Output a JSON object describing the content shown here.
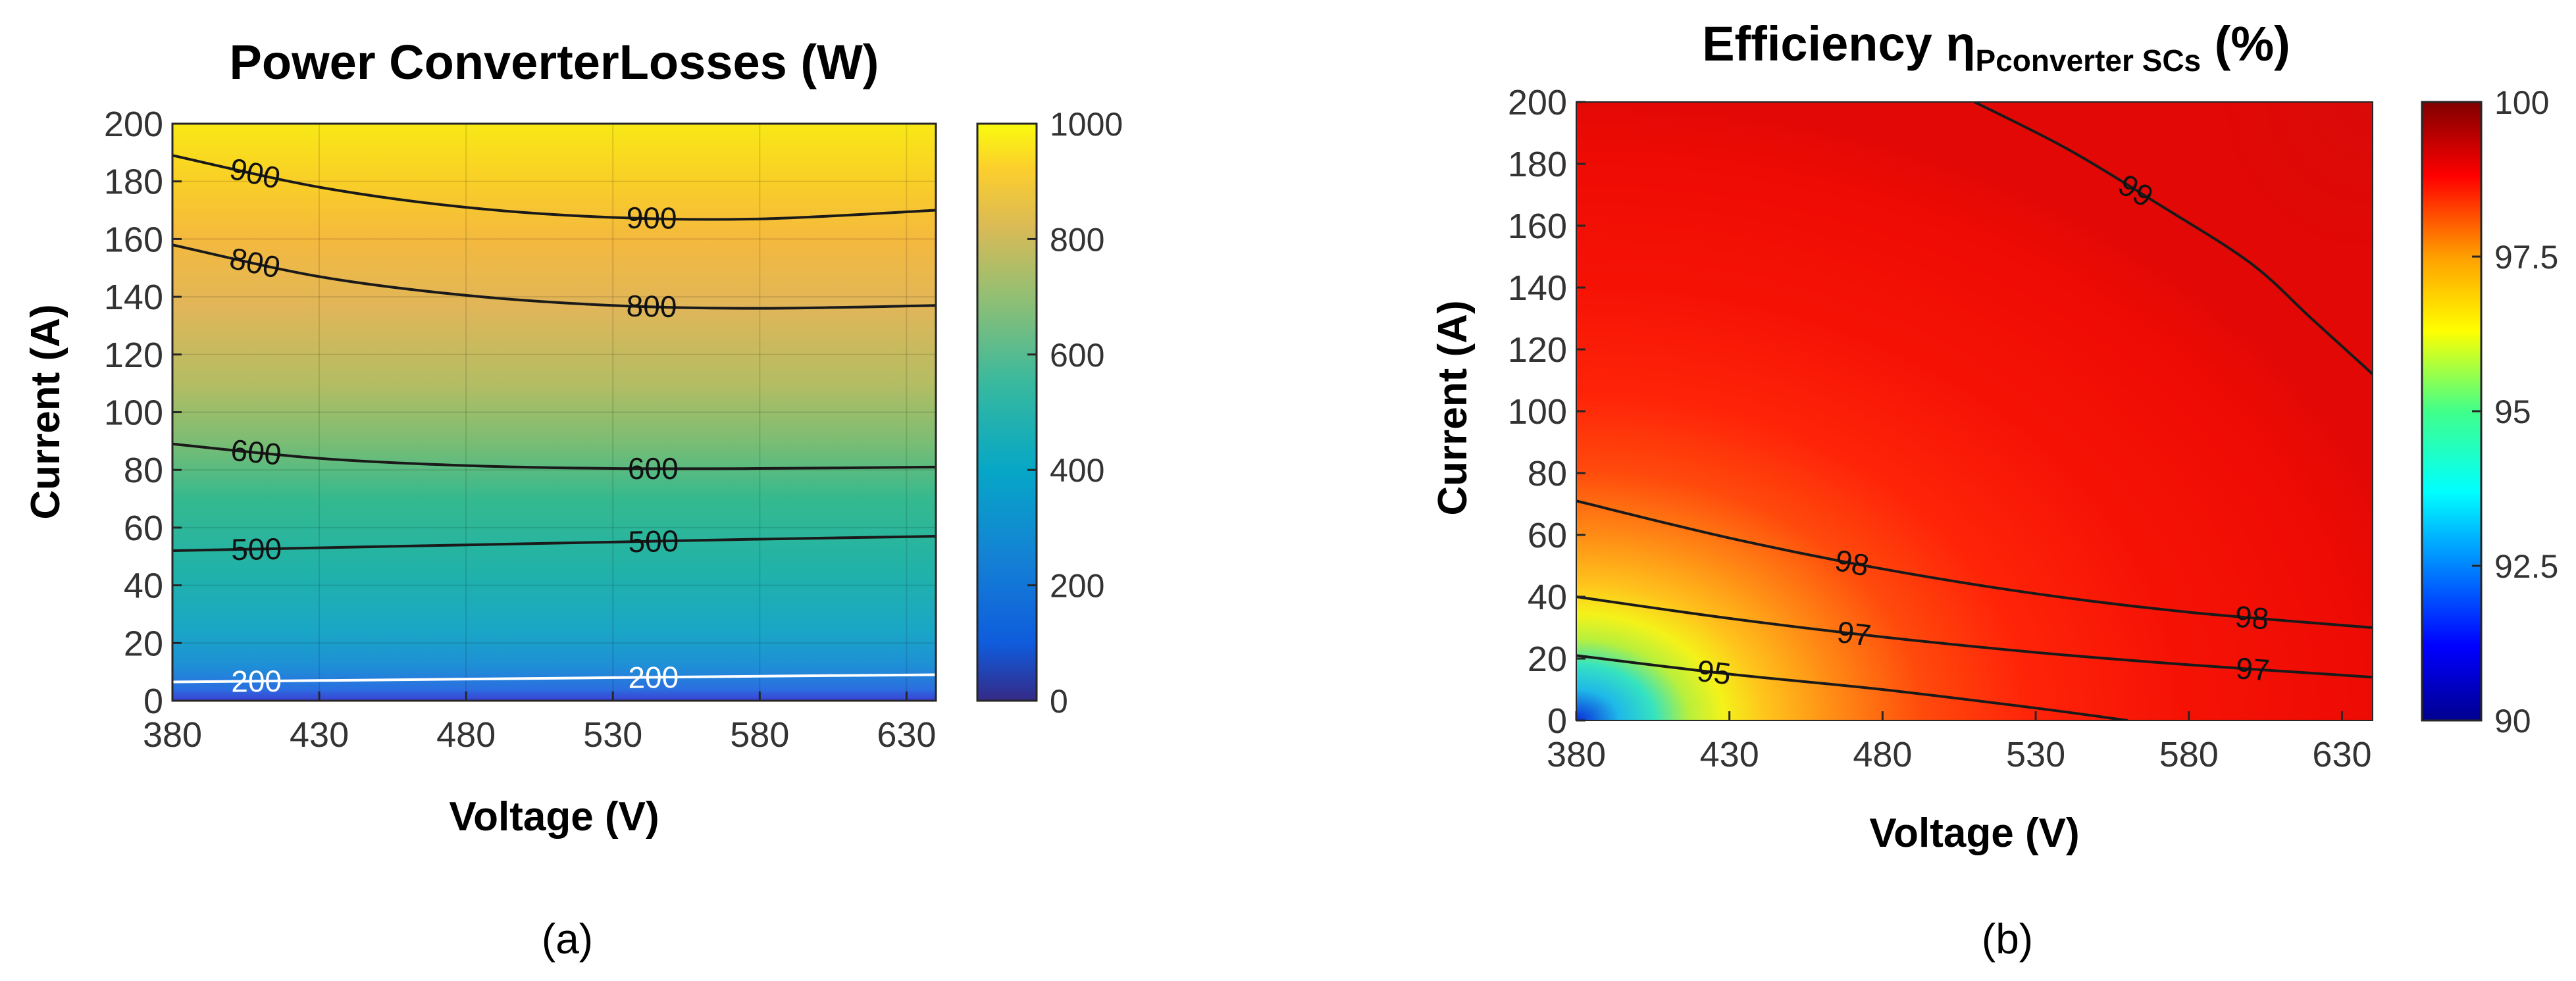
{
  "chart_data": [
    {
      "type": "heatmap",
      "title": "Power ConverterLosses (W)",
      "xlabel": "Voltage (V)",
      "ylabel": "Current (A)",
      "xlim": [
        380,
        640
      ],
      "ylim": [
        0,
        200
      ],
      "xticks": [
        380,
        430,
        480,
        530,
        580,
        630
      ],
      "yticks": [
        0,
        20,
        40,
        60,
        80,
        100,
        120,
        140,
        160,
        180,
        200
      ],
      "colorbar": {
        "min": 0,
        "max": 1000,
        "ticks": [
          0,
          200,
          400,
          600,
          800,
          1000
        ],
        "colormap": "parula"
      },
      "grid": true,
      "contours": [
        {
          "level": 900,
          "label": "900",
          "color": "#1a1a1a",
          "points": [
            [
              380,
              189
            ],
            [
              430,
              178
            ],
            [
              480,
              171
            ],
            [
              530,
              167.5
            ],
            [
              580,
              167
            ],
            [
              640,
              170
            ]
          ]
        },
        {
          "level": 800,
          "label": "800",
          "color": "#1a1a1a",
          "points": [
            [
              380,
              158
            ],
            [
              430,
              147
            ],
            [
              480,
              140.5
            ],
            [
              530,
              137
            ],
            [
              580,
              136
            ],
            [
              640,
              137
            ]
          ]
        },
        {
          "level": 600,
          "label": "600",
          "color": "#1a1a1a",
          "points": [
            [
              380,
              89
            ],
            [
              430,
              84
            ],
            [
              480,
              81.5
            ],
            [
              530,
              80.5
            ],
            [
              580,
              80.5
            ],
            [
              640,
              81
            ]
          ]
        },
        {
          "level": 500,
          "label": "500",
          "color": "#1a1a1a",
          "points": [
            [
              380,
              52
            ],
            [
              430,
              53
            ],
            [
              480,
              54
            ],
            [
              530,
              55
            ],
            [
              580,
              56
            ],
            [
              640,
              57
            ]
          ]
        },
        {
          "level": 200,
          "label": "200",
          "color": "#ffffff",
          "points": [
            [
              380,
              6.5
            ],
            [
              430,
              7
            ],
            [
              480,
              7.5
            ],
            [
              530,
              8
            ],
            [
              580,
              8.5
            ],
            [
              640,
              9
            ]
          ]
        }
      ],
      "caption": "(a)"
    },
    {
      "type": "heatmap",
      "title": "Efficiency η",
      "title_subscript": "Pconverter SCs",
      "title_suffix": " (%)",
      "xlabel": "Voltage (V)",
      "ylabel": "Current (A)",
      "xlim": [
        380,
        640
      ],
      "ylim": [
        0,
        200
      ],
      "xticks": [
        380,
        430,
        480,
        530,
        580,
        630
      ],
      "yticks": [
        0,
        20,
        40,
        60,
        80,
        100,
        120,
        140,
        160,
        180,
        200
      ],
      "colorbar": {
        "min": 90,
        "max": 100,
        "ticks": [
          "90",
          "92.5",
          "95",
          "97.5",
          "100"
        ],
        "colormap": "jet"
      },
      "grid": false,
      "contours": [
        {
          "level": 99,
          "label": "99",
          "color": "#1a1a1a",
          "points": [
            [
              510,
              200
            ],
            [
              540,
              185
            ],
            [
              570,
              167
            ],
            [
              600,
              148
            ],
            [
              620,
              130
            ],
            [
              640,
              112
            ]
          ]
        },
        {
          "level": 98,
          "label": "98",
          "color": "#1a1a1a",
          "points": [
            [
              380,
              71
            ],
            [
              430,
              59
            ],
            [
              480,
              49
            ],
            [
              530,
              41
            ],
            [
              580,
              35
            ],
            [
              640,
              30
            ]
          ]
        },
        {
          "level": 97,
          "label": "97",
          "color": "#1a1a1a",
          "points": [
            [
              380,
              40
            ],
            [
              430,
              33
            ],
            [
              480,
              27
            ],
            [
              530,
              22
            ],
            [
              580,
              18
            ],
            [
              640,
              14
            ]
          ]
        },
        {
          "level": 95,
          "label": "95",
          "color": "#1a1a1a",
          "points": [
            [
              380,
              21
            ],
            [
              430,
              15
            ],
            [
              480,
              10
            ],
            [
              530,
              4
            ],
            [
              560,
              0
            ]
          ]
        }
      ],
      "caption": "(b)"
    }
  ]
}
